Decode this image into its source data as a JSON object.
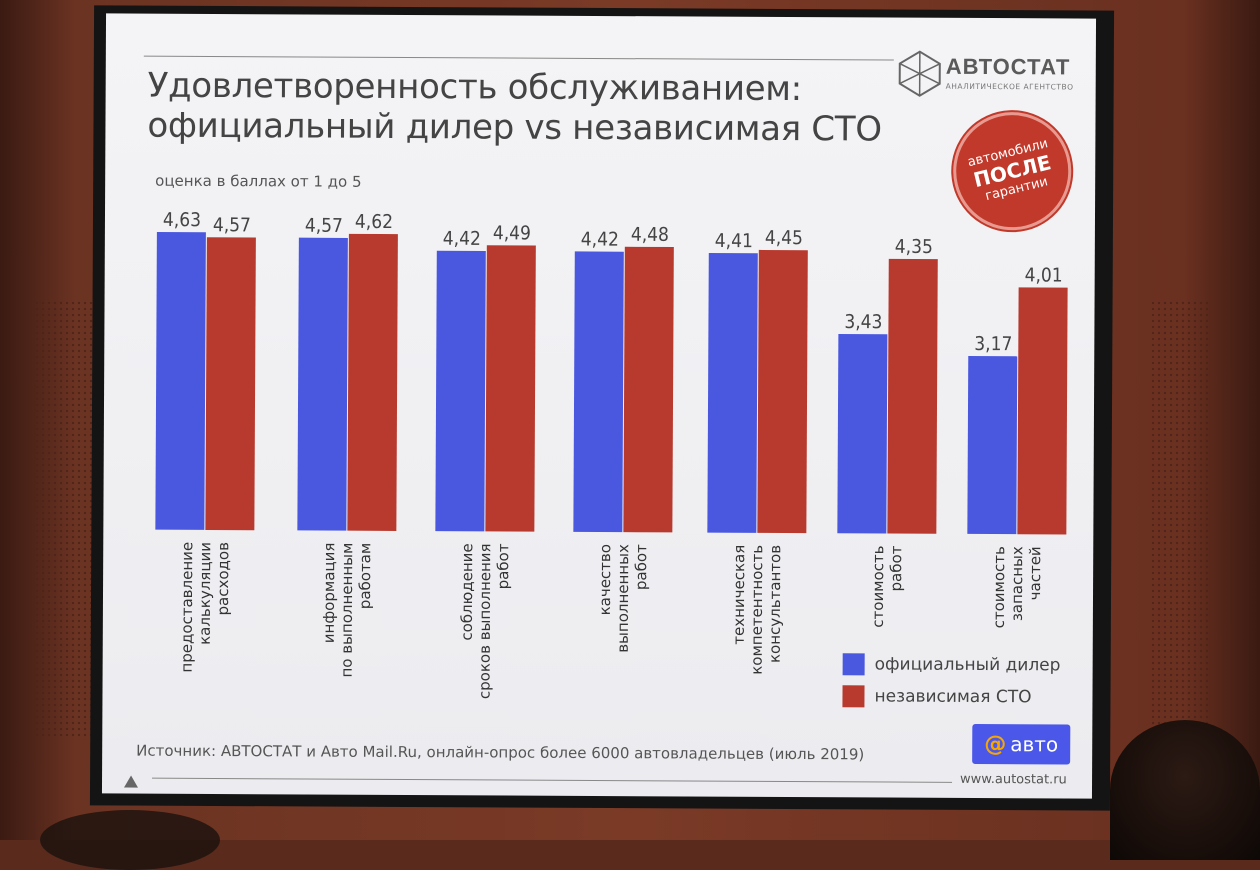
{
  "slide": {
    "title_line1": "Удовлетворенность обслуживанием:",
    "title_line2": "официальный дилер vs независимая СТО",
    "subtitle": "оценка в баллах от 1 до 5",
    "logo_name": "АВТОСТАТ",
    "logo_sub": "АНАЛИТИЧЕСКОЕ АГЕНТСТВО",
    "badge": {
      "line1": "автомобили",
      "line2": "ПОСЛЕ",
      "line3": "гарантии"
    },
    "source": "Источник: АВТОСТАТ и Авто Mail.Ru, онлайн-опрос более 6000 автовладельцев (июль 2019)",
    "mail_badge": {
      "at": "@",
      "label": "авто"
    },
    "url": "www.autostat.ru",
    "legend": [
      {
        "label": "официальный дилер",
        "color": "#4a58e0"
      },
      {
        "label": "независимая СТО",
        "color": "#b83a2e"
      }
    ]
  },
  "chart_data": {
    "type": "bar",
    "title": "Удовлетворенность обслуживанием: официальный дилер vs независимая СТО",
    "subtitle": "оценка в баллах от 1 до 5",
    "categories": [
      [
        "предоставление",
        "калькуляции",
        "расходов"
      ],
      [
        "информация",
        "по выполненным",
        "работам"
      ],
      [
        "соблюдение",
        "сроков выполнения",
        "работ"
      ],
      [
        "качество",
        "выполненных",
        "работ"
      ],
      [
        "техническая",
        "компетентность",
        "консультантов"
      ],
      [
        "стоимость",
        "работ"
      ],
      [
        "стоимость",
        "запасных",
        "частей"
      ]
    ],
    "series": [
      {
        "name": "официальный дилер",
        "color": "#4a58e0",
        "values": [
          4.63,
          4.57,
          4.42,
          4.42,
          4.41,
          3.43,
          3.17
        ],
        "labels": [
          "4,63",
          "4,57",
          "4,42",
          "4,42",
          "4,41",
          "3,43",
          "3,17"
        ]
      },
      {
        "name": "независимая СТО",
        "color": "#b83a2e",
        "values": [
          4.57,
          4.62,
          4.49,
          4.48,
          4.45,
          4.35,
          4.01
        ],
        "labels": [
          "4,57",
          "4,62",
          "4,49",
          "4,48",
          "4,45",
          "4,35",
          "4,01"
        ]
      }
    ],
    "ylim": [
      1,
      5
    ],
    "grid": false,
    "legend_position": "bottom-right"
  }
}
